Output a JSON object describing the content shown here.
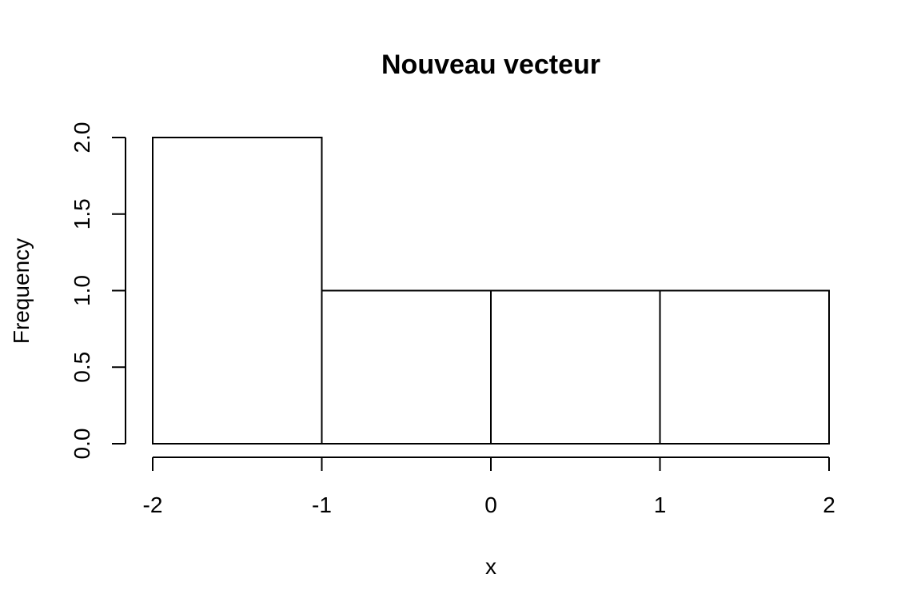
{
  "chart_data": {
    "type": "bar",
    "title": "Nouveau vecteur",
    "xlabel": "x",
    "ylabel": "Frequency",
    "bins": [
      {
        "start": -2,
        "end": -1,
        "count": 2
      },
      {
        "start": -1,
        "end": 0,
        "count": 1
      },
      {
        "start": 0,
        "end": 1,
        "count": 1
      },
      {
        "start": 1,
        "end": 2,
        "count": 1
      }
    ],
    "xlim": [
      -2,
      2
    ],
    "ylim": [
      0,
      2
    ],
    "x_ticks": [
      "-2",
      "-1",
      "0",
      "1",
      "2"
    ],
    "y_ticks": [
      "0.0",
      "0.5",
      "1.0",
      "1.5",
      "2.0"
    ],
    "grid": false,
    "colors": {
      "bar_fill": "#ffffff",
      "bar_stroke": "#000000"
    }
  }
}
